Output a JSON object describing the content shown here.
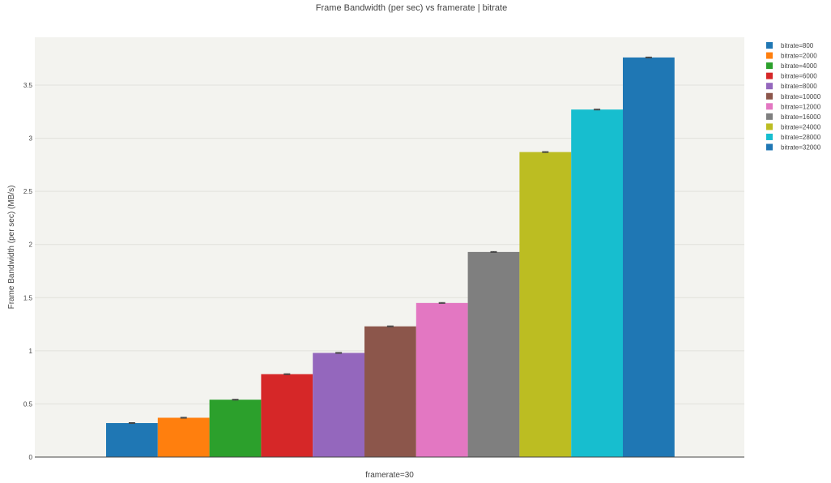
{
  "chart_data": {
    "type": "bar",
    "title": "Frame Bandwidth (per sec) vs framerate | bitrate",
    "xlabel": "framerate=30",
    "ylabel": "Frame Bandwidth (per sec) (MB/s)",
    "ylim": [
      0,
      3.95
    ],
    "yticks": [
      0,
      0.5,
      1,
      1.5,
      2,
      2.5,
      3,
      3.5
    ],
    "ytick_labels": [
      "0",
      "0.5",
      "1",
      "1.5",
      "2",
      "2.5",
      "3",
      "3.5"
    ],
    "grid": true,
    "legend_position": "top-right",
    "background_color": "#f3f3ef",
    "series": [
      {
        "name": "bitrate=800",
        "value": 0.32,
        "error": 0.004,
        "color": "#1f77b4"
      },
      {
        "name": "bitrate=2000",
        "value": 0.37,
        "error": 0.004,
        "color": "#ff7f0e"
      },
      {
        "name": "bitrate=4000",
        "value": 0.54,
        "error": 0.004,
        "color": "#2ca02c"
      },
      {
        "name": "bitrate=6000",
        "value": 0.78,
        "error": 0.004,
        "color": "#d62728"
      },
      {
        "name": "bitrate=8000",
        "value": 0.98,
        "error": 0.004,
        "color": "#9467bd"
      },
      {
        "name": "bitrate=10000",
        "value": 1.23,
        "error": 0.004,
        "color": "#8c564b"
      },
      {
        "name": "bitrate=12000",
        "value": 1.45,
        "error": 0.004,
        "color": "#e377c2"
      },
      {
        "name": "bitrate=16000",
        "value": 1.93,
        "error": 0.004,
        "color": "#7f7f7f"
      },
      {
        "name": "bitrate=24000",
        "value": 2.87,
        "error": 0.004,
        "color": "#bcbd22"
      },
      {
        "name": "bitrate=28000",
        "value": 3.27,
        "error": 0.004,
        "color": "#17becf"
      },
      {
        "name": "bitrate=32000",
        "value": 3.76,
        "error": 0.004,
        "color": "#1f77b4"
      }
    ]
  }
}
